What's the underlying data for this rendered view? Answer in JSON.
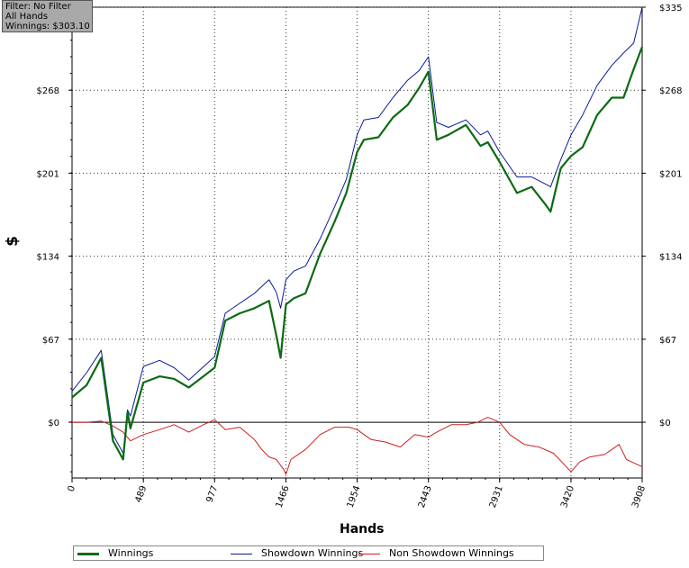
{
  "info_box": {
    "filter": "Filter: No Filter",
    "hands": "All Hands",
    "winnings": "Winnings: $303.10"
  },
  "legend": {
    "winnings": "Winnings",
    "showdown": "Showdown Winnings",
    "non_showdown": "Non Showdown Winnings"
  },
  "colors": {
    "winnings": "#0b6b13",
    "showdown": "#0a1a9a",
    "non_showdown": "#cc1f1f"
  },
  "chart_data": {
    "type": "line",
    "xlabel": "Hands",
    "ylabel": "$",
    "xlim": [
      0,
      3908
    ],
    "ylim": [
      -45,
      335
    ],
    "x_ticks": [
      "0",
      "489",
      "977",
      "1466",
      "1954",
      "2443",
      "2931",
      "3420",
      "3908"
    ],
    "y_ticks": [
      "$0",
      "$67",
      "$134",
      "$201",
      "$268",
      "$335"
    ],
    "grid": true,
    "series": [
      {
        "name": "Winnings",
        "x": [
          0,
          100,
          200,
          280,
          350,
          380,
          400,
          489,
          600,
          700,
          800,
          977,
          1050,
          1150,
          1250,
          1350,
          1400,
          1430,
          1466,
          1520,
          1600,
          1700,
          1800,
          1880,
          1954,
          2000,
          2100,
          2200,
          2300,
          2380,
          2443,
          2500,
          2580,
          2700,
          2800,
          2850,
          2931,
          3050,
          3150,
          3250,
          3280,
          3350,
          3420,
          3500,
          3600,
          3700,
          3780,
          3850,
          3908
        ],
        "y": [
          20,
          30,
          52,
          -15,
          -30,
          8,
          -5,
          32,
          37,
          35,
          28,
          44,
          82,
          88,
          92,
          98,
          70,
          52,
          95,
          100,
          104,
          136,
          162,
          185,
          218,
          228,
          230,
          246,
          256,
          270,
          283,
          228,
          232,
          240,
          223,
          226,
          210,
          185,
          190,
          175,
          170,
          205,
          215,
          222,
          248,
          262,
          262,
          285,
          303
        ]
      },
      {
        "name": "Showdown Winnings",
        "x": [
          0,
          100,
          200,
          280,
          350,
          380,
          400,
          489,
          600,
          700,
          800,
          977,
          1050,
          1150,
          1250,
          1350,
          1400,
          1430,
          1466,
          1520,
          1600,
          1700,
          1800,
          1880,
          1954,
          2000,
          2100,
          2200,
          2300,
          2380,
          2443,
          2500,
          2580,
          2700,
          2800,
          2850,
          2931,
          3050,
          3150,
          3250,
          3280,
          3350,
          3420,
          3500,
          3600,
          3700,
          3780,
          3850,
          3908
        ],
        "y": [
          25,
          40,
          58,
          -10,
          -25,
          10,
          5,
          45,
          50,
          44,
          34,
          53,
          88,
          96,
          104,
          115,
          105,
          92,
          115,
          122,
          126,
          148,
          174,
          196,
          232,
          244,
          246,
          262,
          276,
          284,
          295,
          242,
          238,
          244,
          232,
          235,
          218,
          198,
          198,
          192,
          190,
          212,
          232,
          248,
          272,
          288,
          298,
          306,
          335
        ]
      },
      {
        "name": "Non Showdown Winnings",
        "x": [
          0,
          100,
          200,
          280,
          350,
          400,
          489,
          600,
          700,
          800,
          900,
          977,
          1050,
          1150,
          1250,
          1300,
          1350,
          1400,
          1450,
          1466,
          1500,
          1600,
          1700,
          1800,
          1900,
          1954,
          2050,
          2150,
          2250,
          2350,
          2443,
          2500,
          2600,
          2700,
          2780,
          2850,
          2931,
          3000,
          3100,
          3200,
          3300,
          3380,
          3420,
          3480,
          3550,
          3650,
          3750,
          3800,
          3908
        ],
        "y": [
          0,
          0,
          1,
          -3,
          -8,
          -15,
          -10,
          -6,
          -2,
          -8,
          -2,
          2,
          -6,
          -4,
          -14,
          -22,
          -28,
          -30,
          -38,
          -42,
          -30,
          -22,
          -10,
          -4,
          -4,
          -6,
          -14,
          -16,
          -20,
          -10,
          -12,
          -8,
          -2,
          -2,
          0,
          4,
          0,
          -10,
          -18,
          -20,
          -25,
          -35,
          -40,
          -32,
          -28,
          -26,
          -18,
          -30,
          -36
        ]
      }
    ]
  }
}
